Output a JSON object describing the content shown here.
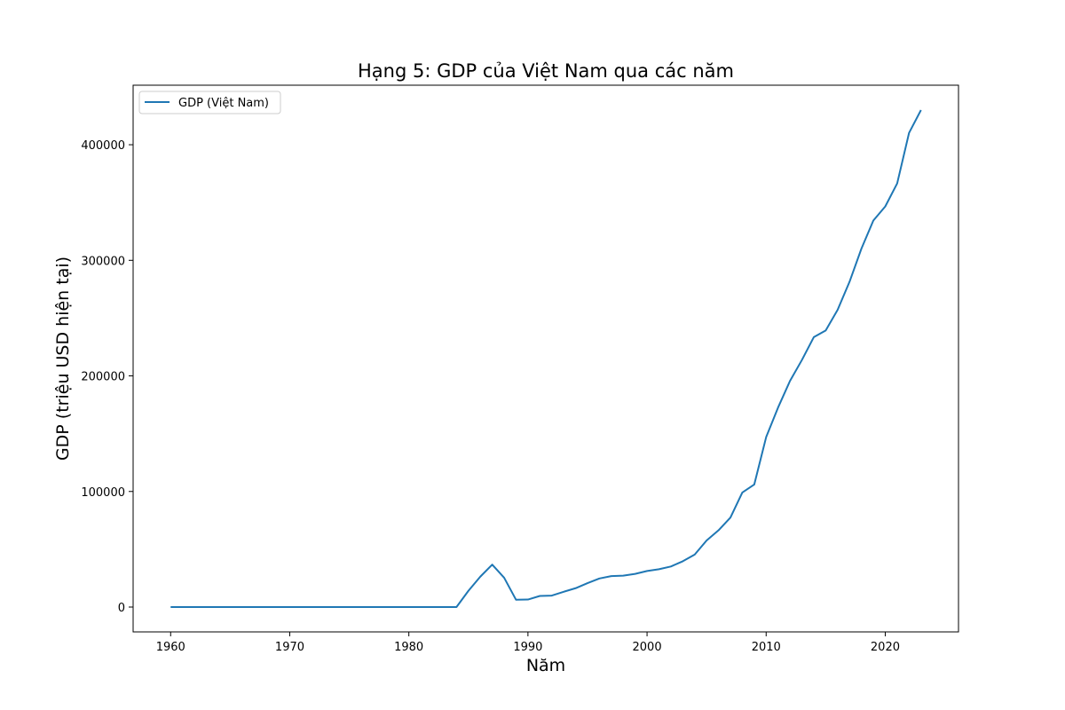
{
  "chart_data": {
    "type": "line",
    "title": "Hạng 5: GDP của Việt Nam qua các năm",
    "xlabel": "Năm",
    "ylabel": "GDP (triệu USD hiện tại)",
    "xlim": [
      1956.85,
      2026.15
    ],
    "ylim": [
      -21500,
      451500
    ],
    "xticks": [
      1960,
      1970,
      1980,
      1990,
      2000,
      2010,
      2020
    ],
    "yticks": [
      0,
      100000,
      200000,
      300000,
      400000
    ],
    "grid": false,
    "legend_position": "upper-left",
    "colors": {
      "series": "#1f77b4"
    },
    "series": [
      {
        "name": "GDP (Việt Nam)",
        "x": [
          1960,
          1961,
          1962,
          1963,
          1964,
          1965,
          1966,
          1967,
          1968,
          1969,
          1970,
          1971,
          1972,
          1973,
          1974,
          1975,
          1976,
          1977,
          1978,
          1979,
          1980,
          1981,
          1982,
          1983,
          1984,
          1985,
          1986,
          1987,
          1988,
          1989,
          1990,
          1991,
          1992,
          1993,
          1994,
          1995,
          1996,
          1997,
          1998,
          1999,
          2000,
          2001,
          2002,
          2003,
          2004,
          2005,
          2006,
          2007,
          2008,
          2009,
          2010,
          2011,
          2012,
          2013,
          2014,
          2015,
          2016,
          2017,
          2018,
          2019,
          2020,
          2021,
          2022,
          2023
        ],
        "y": [
          0,
          0,
          0,
          0,
          0,
          0,
          0,
          0,
          0,
          0,
          0,
          0,
          0,
          0,
          0,
          0,
          0,
          0,
          0,
          0,
          0,
          0,
          0,
          0,
          0,
          14000,
          26300,
          36700,
          25400,
          6300,
          6500,
          9600,
          9900,
          13200,
          16300,
          20700,
          24700,
          26800,
          27200,
          28700,
          31200,
          32700,
          35100,
          39600,
          45400,
          57600,
          66400,
          77400,
          99100,
          106000,
          147000,
          172600,
          195600,
          213700,
          233500,
          239300,
          257100,
          281400,
          310100,
          334400,
          346600,
          366500,
          410300,
          430000
        ]
      }
    ]
  }
}
